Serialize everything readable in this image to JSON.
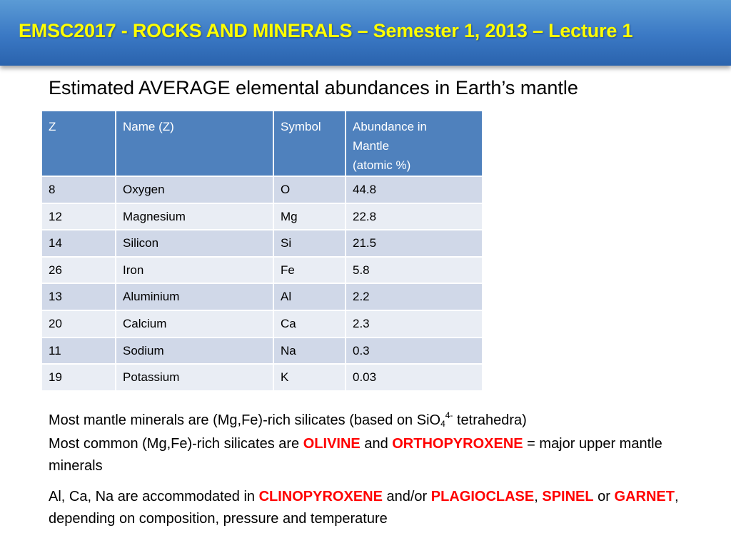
{
  "header": {
    "title": "EMSC2017 - ROCKS AND MINERALS – Semester 1, 2013 – Lecture 1"
  },
  "subtitle": "Estimated AVERAGE elemental abundances in Earth’s mantle",
  "table": {
    "headers": {
      "z": "Z",
      "name": "Name (Z)",
      "symbol": "Symbol",
      "abundance_line1": "Abundance in",
      "abundance_line2": "Mantle",
      "abundance_line3": "(atomic %)"
    },
    "rows": [
      {
        "z": "8",
        "name": "Oxygen",
        "symbol": "O",
        "abundance": "44.8"
      },
      {
        "z": "12",
        "name": "Magnesium",
        "symbol": "Mg",
        "abundance": "22.8"
      },
      {
        "z": "14",
        "name": "Silicon",
        "symbol": "Si",
        "abundance": "21.5"
      },
      {
        "z": "26",
        "name": "Iron",
        "symbol": "Fe",
        "abundance": "5.8"
      },
      {
        "z": "13",
        "name": "Aluminium",
        "symbol": "Al",
        "abundance": "2.2"
      },
      {
        "z": "20",
        "name": "Calcium",
        "symbol": "Ca",
        "abundance": "2.3"
      },
      {
        "z": "11",
        "name": "Sodium",
        "symbol": "Na",
        "abundance": "0.3"
      },
      {
        "z": "19",
        "name": "Potassium",
        "symbol": "K",
        "abundance": "0.03"
      }
    ]
  },
  "paragraphs": {
    "p1": {
      "before": "Most mantle minerals are (Mg,Fe)-rich silicates (based on SiO",
      "sub": "4",
      "sup": "4-",
      "after": " tetrahedra)"
    },
    "p2": {
      "t1": "Most common (Mg,Fe)-rich silicates are ",
      "h1": "OLIVINE",
      "t2": " and ",
      "h2": "ORTHOPYROXENE",
      "t3": " = major upper mantle minerals"
    },
    "p3": {
      "t1": "Al, Ca, Na are accommodated in ",
      "h1": "CLINOPYROXENE",
      "t2": " and/or ",
      "h2": "PLAGIOCLASE",
      "t3": ", ",
      "h3": "SPINEL",
      "t4": " or ",
      "h4": "GARNET",
      "t5": ", depending on composition, pressure and temperature"
    }
  },
  "colors": {
    "title_bar": "#3a78c4",
    "title_text": "#ffff00",
    "table_header": "#4f81bd",
    "row_odd": "#d0d8e8",
    "row_even": "#e9edf4",
    "highlight": "#ff0000"
  }
}
